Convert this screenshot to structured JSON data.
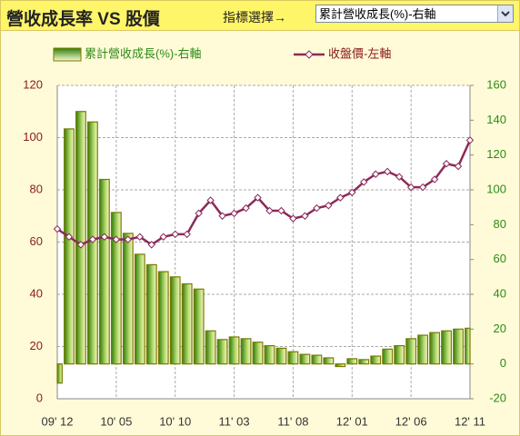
{
  "header": {
    "title": "營收成長率 VS 股價",
    "selector_label": "指標選擇→",
    "selector_value": "累計營收成長(%)-右軸"
  },
  "chart_data": {
    "type": "bar_line",
    "categories": [
      "09' 12",
      null,
      null,
      null,
      null,
      "10' 05",
      null,
      null,
      null,
      null,
      "10' 10",
      null,
      null,
      null,
      null,
      "11' 03",
      null,
      null,
      null,
      null,
      "11' 08",
      null,
      null,
      null,
      null,
      "12' 01",
      null,
      null,
      null,
      null,
      "12' 06",
      null,
      null,
      null,
      null,
      "12' 11"
    ],
    "series": [
      {
        "name": "累計營收成長(%)-右軸",
        "color": "#4f8a10",
        "axis": "y2",
        "kind": "bar",
        "values": [
          -11,
          135,
          145,
          139,
          106,
          87,
          75,
          63,
          57,
          53,
          50,
          46,
          43,
          19,
          14,
          15.5,
          14.5,
          12.5,
          10.5,
          9,
          7,
          5.5,
          5,
          3.5,
          -1.5,
          3,
          2.5,
          4.5,
          8.5,
          10.5,
          14.5,
          16.5,
          18,
          19,
          20,
          20.5
        ]
      },
      {
        "name": "收盤價-左軸",
        "color": "#8b2a5a",
        "axis": "y",
        "kind": "line",
        "values": [
          65,
          62,
          59,
          61,
          62,
          61,
          61,
          62,
          59,
          62,
          63,
          63,
          71,
          76,
          70,
          71,
          73,
          77,
          72,
          72,
          69,
          70,
          73,
          74,
          77,
          79,
          83,
          86,
          87,
          85,
          81,
          81,
          84,
          90,
          89,
          99
        ]
      }
    ],
    "ylim": [
      0,
      120
    ],
    "yticks": [
      0,
      20,
      40,
      60,
      80,
      100,
      120
    ],
    "y2lim": [
      -20,
      160
    ],
    "y2ticks": [
      -20,
      0,
      20,
      40,
      60,
      80,
      100,
      120,
      140,
      160
    ],
    "grid": true
  }
}
